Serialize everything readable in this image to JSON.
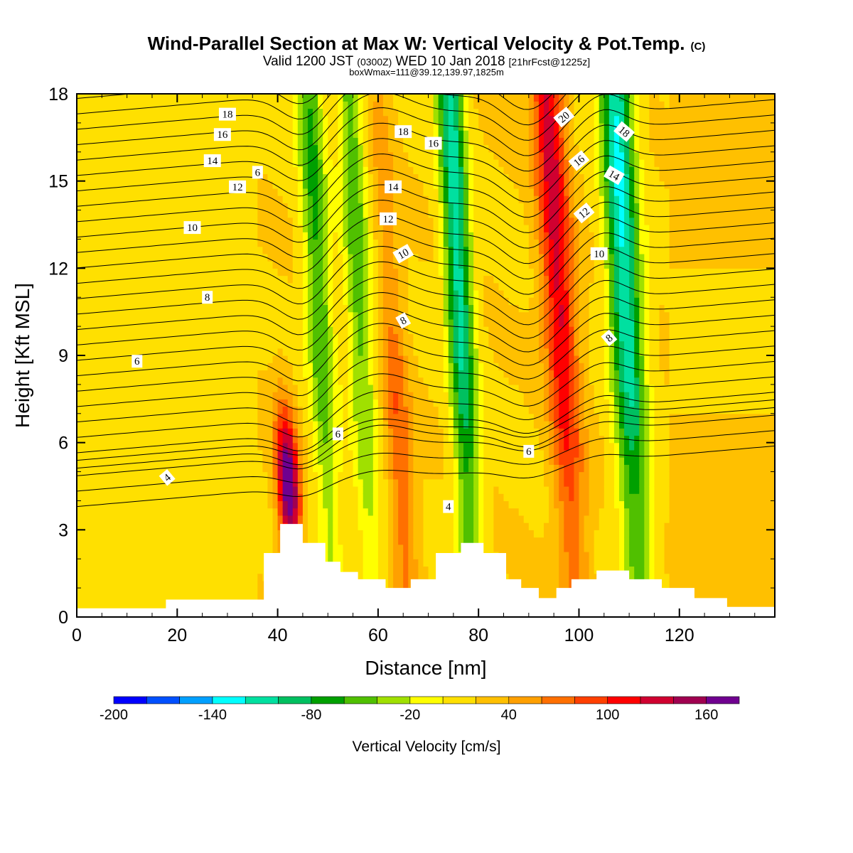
{
  "chart_data": {
    "type": "heatmap",
    "title": "Wind-Parallel Section at Max W: Vertical Velocity & Pot.Temp.",
    "title_mark": "(C)",
    "subtitle_parts": [
      "Valid 1200 JST",
      "(0300Z)",
      "WED 10 Jan 2018",
      "[21hrFcst@1225z]"
    ],
    "subtitle2": "boxWmax=111@39.12,139.97,1825m",
    "xlabel": "Distance [nm]",
    "ylabel": "Height [Kft MSL]",
    "xlim": [
      0,
      139
    ],
    "ylim": [
      0,
      18
    ],
    "xticks": [
      0,
      20,
      40,
      60,
      80,
      100,
      120
    ],
    "yticks": [
      0,
      3,
      6,
      9,
      12,
      15,
      18
    ],
    "grid": false,
    "colorbar": {
      "title": "Vertical Velocity [cm/s]",
      "tick_labels": [
        "-200",
        "-140",
        "-80",
        "-20",
        "40",
        "100",
        "160"
      ],
      "tick_values": [
        -200,
        -140,
        -80,
        -20,
        40,
        100,
        160
      ],
      "levels": [
        -200,
        -180,
        -160,
        -140,
        -120,
        -100,
        -80,
        -60,
        -40,
        -20,
        0,
        20,
        40,
        60,
        80,
        100,
        120,
        140,
        160,
        180
      ],
      "colors": [
        "#0000ff",
        "#0050ff",
        "#00a0ff",
        "#00ffff",
        "#00e0a0",
        "#00c060",
        "#00a000",
        "#50c000",
        "#a0e000",
        "#ffff00",
        "#ffe000",
        "#ffc000",
        "#ffa000",
        "#ff7000",
        "#ff4000",
        "#ff0000",
        "#d00030",
        "#a00050",
        "#700090"
      ]
    },
    "vertical_velocity_bands_cm_s": [
      {
        "x_nm": 41,
        "top_kft": 9,
        "peak": 170,
        "sign": "up"
      },
      {
        "x_nm": 49,
        "top_kft": 18,
        "peak": -80,
        "sign": "down"
      },
      {
        "x_nm": 57,
        "top_kft": 18,
        "peak": -70,
        "sign": "down"
      },
      {
        "x_nm": 65,
        "top_kft": 18,
        "peak": 60,
        "sign": "up"
      },
      {
        "x_nm": 77,
        "top_kft": 18,
        "peak": -130,
        "sign": "down"
      },
      {
        "x_nm": 97,
        "top_kft": 18,
        "peak": 110,
        "sign": "up"
      },
      {
        "x_nm": 110,
        "top_kft": 18,
        "peak": -140,
        "sign": "down"
      }
    ],
    "theta_contour_labels": [
      "4",
      "6",
      "8",
      "10",
      "12",
      "14",
      "16",
      "18",
      "20"
    ],
    "terrain_kft": [
      {
        "x": 0,
        "h": 0.3
      },
      {
        "x": 35.5,
        "h": 0.6
      },
      {
        "x": 39,
        "h": 2.2
      },
      {
        "x": 42,
        "h": 3.2
      },
      {
        "x": 48,
        "h": 2.55
      },
      {
        "x": 51,
        "h": 1.9
      },
      {
        "x": 54,
        "h": 1.55
      },
      {
        "x": 58,
        "h": 1.3
      },
      {
        "x": 65,
        "h": 1.0
      },
      {
        "x": 68,
        "h": 1.3
      },
      {
        "x": 75,
        "h": 2.2
      },
      {
        "x": 78,
        "h": 2.55
      },
      {
        "x": 84,
        "h": 2.2
      },
      {
        "x": 87,
        "h": 1.3
      },
      {
        "x": 90,
        "h": 1.0
      },
      {
        "x": 94,
        "h": 0.65
      },
      {
        "x": 97,
        "h": 1.0
      },
      {
        "x": 100,
        "h": 1.3
      },
      {
        "x": 107,
        "h": 1.6
      },
      {
        "x": 113,
        "h": 1.3
      },
      {
        "x": 120,
        "h": 1.0
      },
      {
        "x": 126,
        "h": 0.65
      },
      {
        "x": 133,
        "h": 0.35
      },
      {
        "x": 139,
        "h": 0.35
      }
    ]
  }
}
